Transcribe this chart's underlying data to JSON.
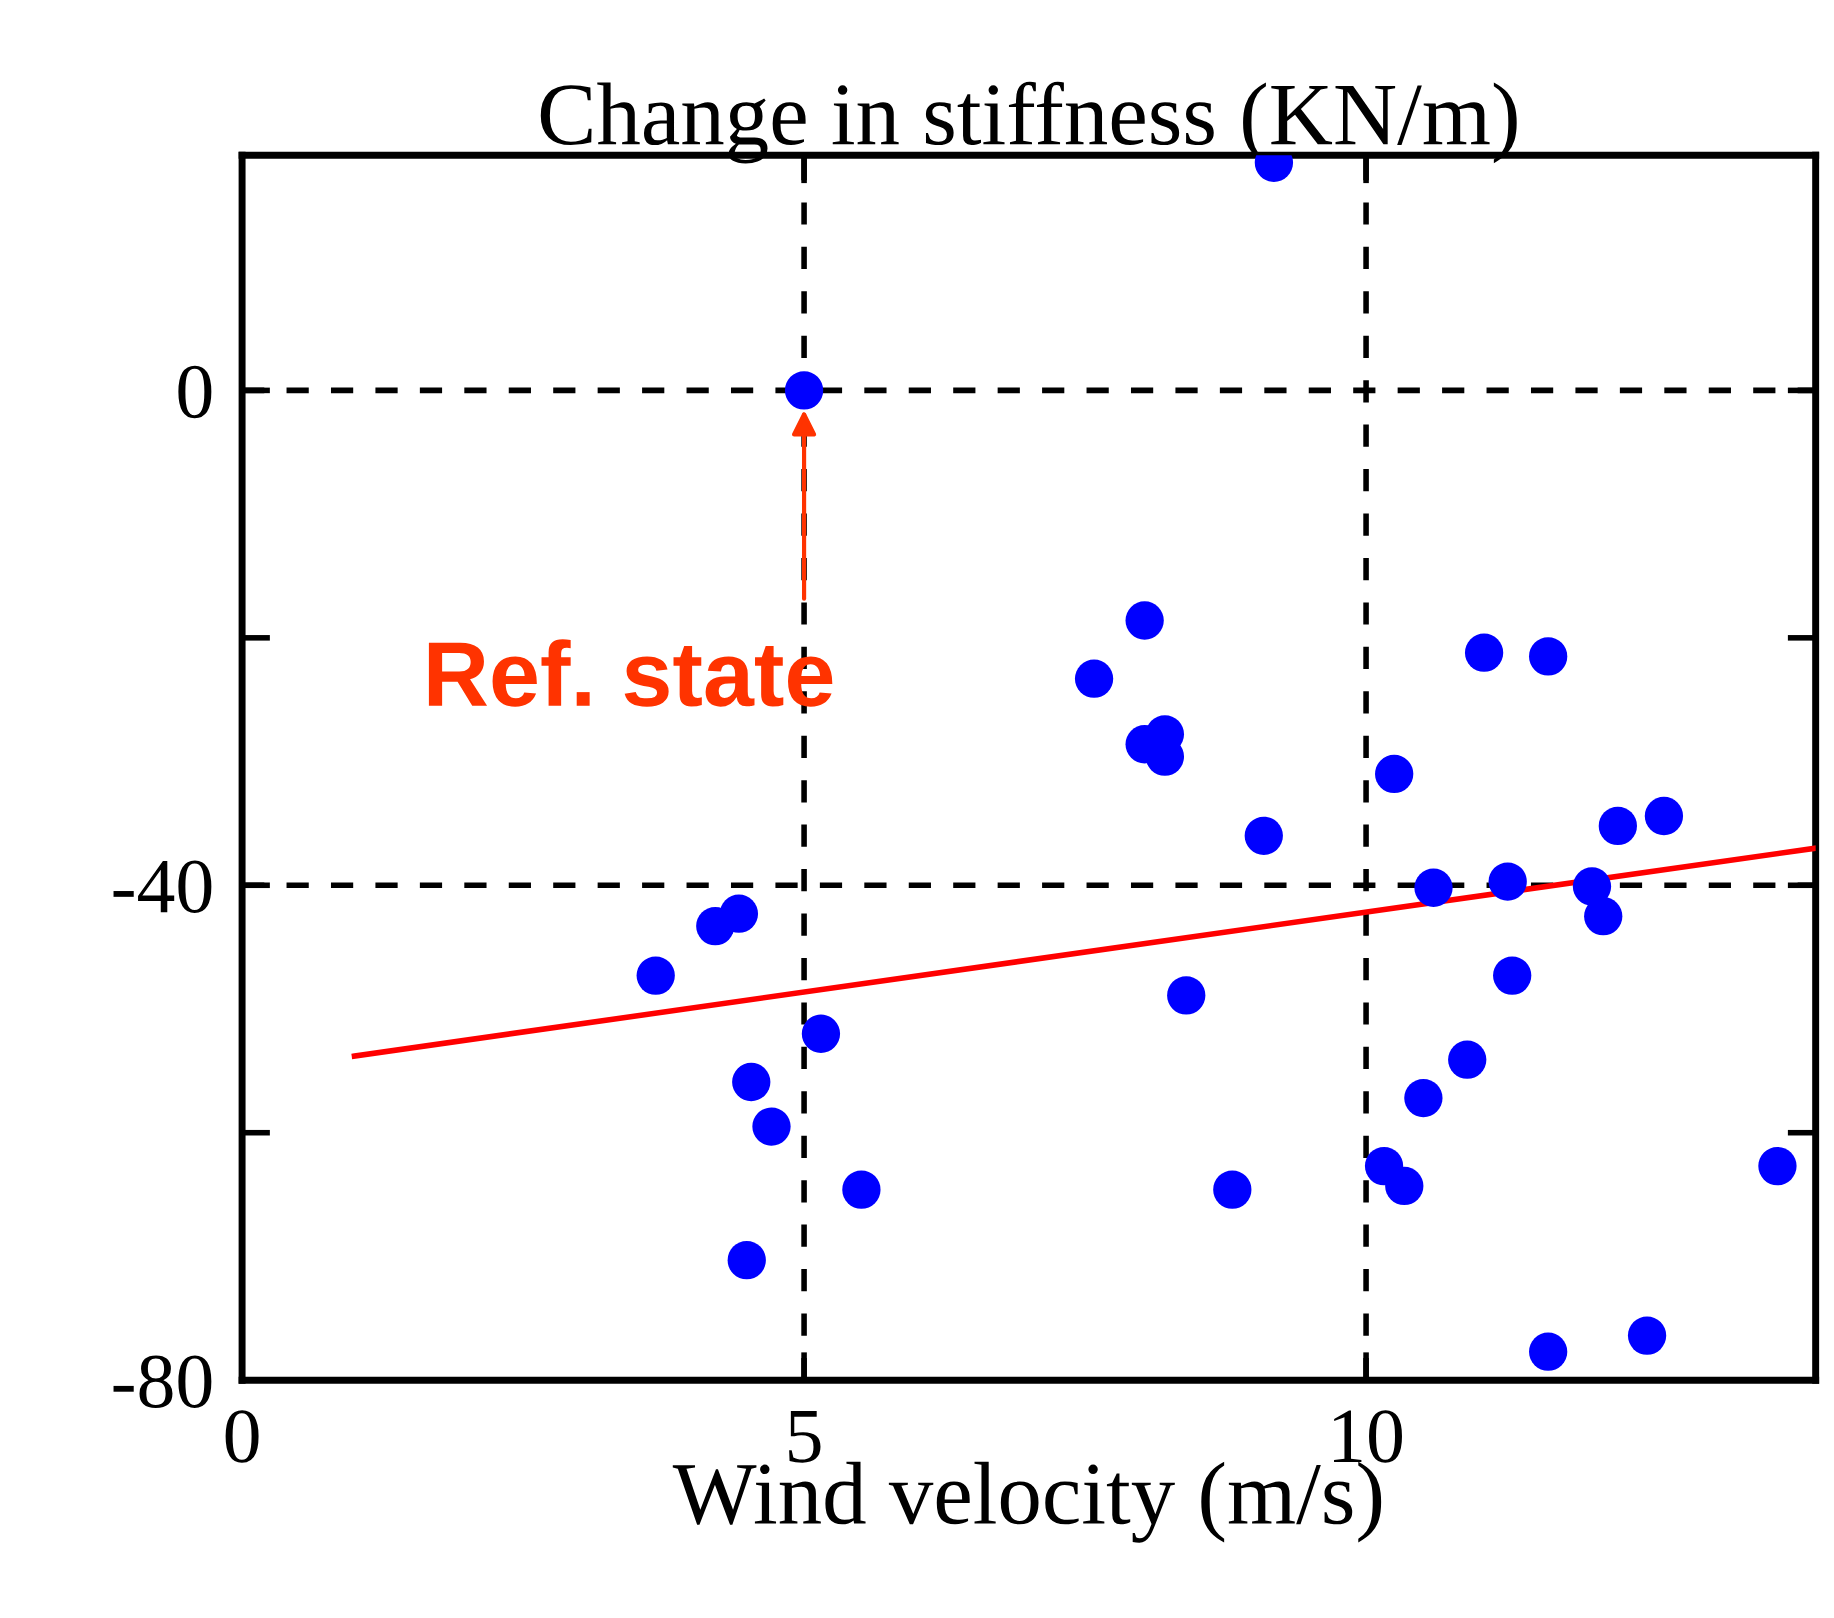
{
  "chart_data": {
    "type": "scatter",
    "title": "Change in stiffness (KN/m)",
    "xlabel": "Wind velocity (m/s)",
    "xlim": [
      0,
      14
    ],
    "ylim": [
      -80,
      19
    ],
    "xticks": [
      0,
      5,
      10
    ],
    "yticks": [
      -80,
      {
        "value": -60,
        "label": null
      },
      -40,
      {
        "value": -20,
        "label": null
      },
      0
    ],
    "grid": true,
    "series": [
      {
        "marker": "circle",
        "color": "#0000ff",
        "x": [
          9.18,
          5,
          8.03,
          7.58,
          8.03,
          8.21,
          8.21,
          9.09,
          10.25,
          11.05,
          11.62,
          12.24,
          12.65,
          10.6,
          11.26,
          12.01,
          12.11,
          11.3,
          10.9,
          10.51,
          10.16,
          10.34,
          8.81,
          8.4,
          5.15,
          4.53,
          4.71,
          5.51,
          4.49,
          3.68,
          4.21,
          4.42,
          11.62,
          12.5,
          13.66
        ],
        "values": [
          18.4,
          0,
          -18.6,
          -23.3,
          -28.6,
          -27.8,
          -29.6,
          -36.0,
          -31.0,
          -21.2,
          -21.5,
          -35.2,
          -34.4,
          -40.2,
          -39.7,
          -40.1,
          -42.5,
          -47.3,
          -54.1,
          -57.2,
          -62.7,
          -64.3,
          -64.6,
          -48.9,
          -52.0,
          -55.9,
          -59.5,
          -64.6,
          -70.3,
          -47.3,
          -43.3,
          -42.3,
          -77.7,
          -76.4,
          -62.7
        ]
      },
      {
        "type": "line",
        "color": "#ff0000",
        "x": [
          1,
          14
        ],
        "values": [
          -53.8,
          -37.0
        ]
      }
    ],
    "annotations": [
      {
        "text": "Ref. state",
        "x": 5,
        "y": 0
      }
    ]
  }
}
